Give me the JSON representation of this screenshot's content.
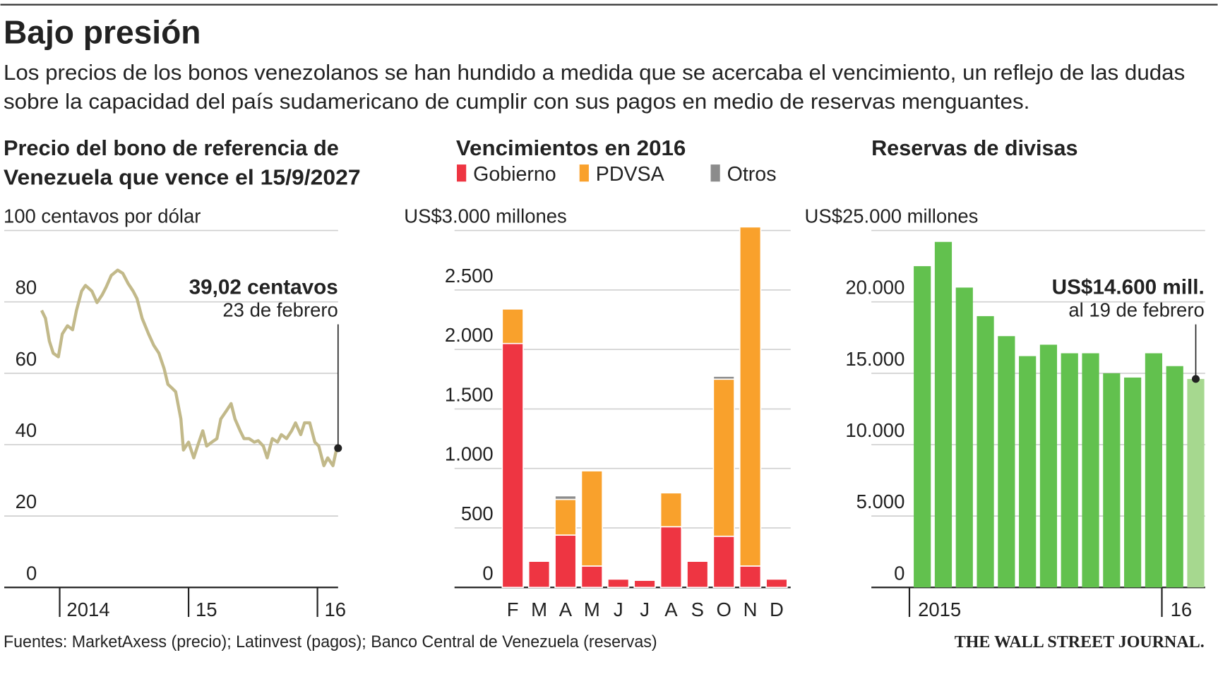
{
  "title": "Bajo presión",
  "subtitle": [
    "Los precios de los bonos venezolanos se han hundido a medida que se acercaba el vencimiento, un reflejo de las dudas",
    "sobre la capacidad del país sudamericano de cumplir con sus pagos en medio de reservas menguantes."
  ],
  "source": "Fuentes: MarketAxess (precio); Latinvest (pagos); Banco Central de Venezuela (reservas)",
  "logo": "THE WALL STREET JOURNAL.",
  "chart_data": [
    {
      "type": "line",
      "title": [
        "Precio del bono de referencia de",
        "Venezuela que vence el 15/9/2027"
      ],
      "color": "#c2b98a",
      "x": [
        2013.86,
        2013.89,
        2013.92,
        2013.95,
        2013.99,
        2014.02,
        2014.06,
        2014.1,
        2014.13,
        2014.17,
        2014.2,
        2014.25,
        2014.29,
        2014.33,
        2014.36,
        2014.4,
        2014.45,
        2014.49,
        2014.53,
        2014.57,
        2014.6,
        2014.64,
        2014.69,
        2014.73,
        2014.77,
        2014.81,
        2014.84,
        2014.87,
        2014.9,
        2014.94,
        2014.96,
        2015.0,
        2015.04,
        2015.07,
        2015.11,
        2015.14,
        2015.18,
        2015.22,
        2015.25,
        2015.29,
        2015.33,
        2015.36,
        2015.4,
        2015.43,
        2015.47,
        2015.51,
        2015.54,
        2015.58,
        2015.61,
        2015.65,
        2015.69,
        2015.72,
        2015.76,
        2015.8,
        2015.83,
        2015.87,
        2015.9,
        2015.94,
        2015.98,
        2016.01,
        2016.05,
        2016.08,
        2016.12,
        2016.15
      ],
      "values": [
        77.6,
        75.4,
        69,
        65.6,
        64.6,
        71,
        73.3,
        72.2,
        77.6,
        83,
        84.6,
        83,
        79.8,
        82,
        84.1,
        87.4,
        88.9,
        88,
        85.2,
        83,
        80.9,
        75.4,
        71,
        67.8,
        65.6,
        61.3,
        56.9,
        55.9,
        54.8,
        47.2,
        38.5,
        40.7,
        36.3,
        39.6,
        43.9,
        39.6,
        40.7,
        41.7,
        47.2,
        49.3,
        51.5,
        47.2,
        43.9,
        41.7,
        41.7,
        40.7,
        41.1,
        39.6,
        36.3,
        41.7,
        40.7,
        42.8,
        41.7,
        43.9,
        46.1,
        42.8,
        46.1,
        46.1,
        40.7,
        39.6,
        34.1,
        36.3,
        34.1,
        39.02
      ],
      "xlim": [
        2013.57,
        2016.16
      ],
      "xticks": [
        {
          "value": 2014,
          "label": "2014"
        },
        {
          "value": 2015,
          "label": "15"
        },
        {
          "value": 2016,
          "label": "16"
        }
      ],
      "ylim": [
        0,
        100
      ],
      "yticks": [
        0,
        20,
        40,
        60,
        80,
        {
          "value": 100,
          "label": "100 centavos por dólar"
        }
      ],
      "grid": true,
      "annotation": {
        "text": "39,02 centavos",
        "subtext": "23 de febrero"
      }
    },
    {
      "type": "stacked_bar",
      "title": [
        "Vencimientos en 2016"
      ],
      "categories": [
        "F",
        "M",
        "A",
        "M",
        "J",
        "J",
        "A",
        "S",
        "O",
        "N",
        "D"
      ],
      "series": [
        {
          "name": "Gobierno",
          "color": "#ee3542",
          "values": [
            2050,
            220,
            440,
            180,
            70,
            60,
            510,
            220,
            430,
            180,
            70
          ]
        },
        {
          "name": "PDVSA",
          "color": "#f9a12c",
          "values": [
            290,
            0,
            300,
            800,
            0,
            0,
            285,
            0,
            1320,
            2850,
            0
          ]
        },
        {
          "name": "Otros",
          "color": "#8c8c8c",
          "values": [
            0,
            0,
            30,
            0,
            0,
            0,
            0,
            0,
            25,
            0,
            0
          ]
        }
      ],
      "ylim": [
        0,
        3000
      ],
      "yticks": [
        0,
        500,
        {
          "value": 1000,
          "label": "1.000"
        },
        {
          "value": 1500,
          "label": "1.500"
        },
        {
          "value": 2000,
          "label": "2.000"
        },
        {
          "value": 2500,
          "label": "2.500"
        },
        {
          "value": 3000,
          "label": "US$3.000 millones"
        }
      ],
      "grid": true
    },
    {
      "type": "bar",
      "title": [
        "Reservas de divisas"
      ],
      "categories": [
        "2015",
        null,
        null,
        null,
        null,
        null,
        null,
        null,
        null,
        null,
        null,
        null,
        "16",
        null
      ],
      "values": [
        22500,
        24200,
        21000,
        19000,
        17600,
        16200,
        17000,
        16400,
        16400,
        15000,
        14700,
        16400,
        15500,
        14600
      ],
      "colors": [
        "#62c14e",
        "#62c14e",
        "#62c14e",
        "#62c14e",
        "#62c14e",
        "#62c14e",
        "#62c14e",
        "#62c14e",
        "#62c14e",
        "#62c14e",
        "#62c14e",
        "#62c14e",
        "#62c14e",
        "#a6d88f"
      ],
      "ylim": [
        0,
        25000
      ],
      "yticks": [
        0,
        {
          "value": 5000,
          "label": "5.000"
        },
        {
          "value": 10000,
          "label": "10.000"
        },
        {
          "value": 15000,
          "label": "15.000"
        },
        {
          "value": 20000,
          "label": "20.000"
        },
        {
          "value": 25000,
          "label": "US$25.000 millones"
        }
      ],
      "grid": true,
      "annotation": {
        "text": "US$14.600 mill.",
        "subtext": "al 19 de febrero"
      }
    }
  ]
}
